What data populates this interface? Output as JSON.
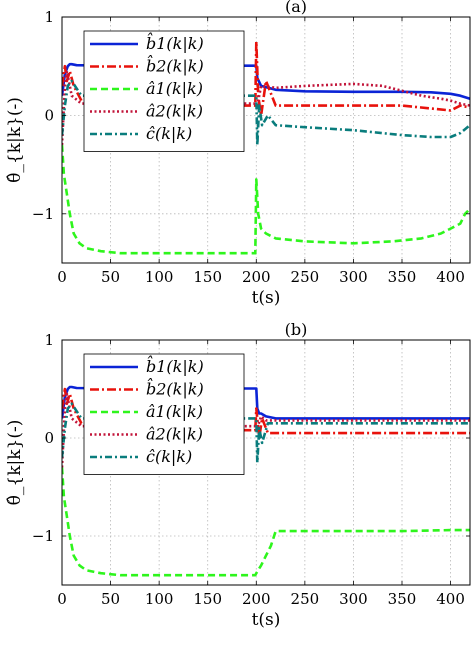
{
  "chart_data": [
    {
      "type": "line",
      "title": "(a)",
      "xlabel": "t(s)",
      "ylabel": "θ̂_{k|k}(-)",
      "xlim": [
        0,
        420
      ],
      "ylim": [
        -1.5,
        1
      ],
      "xticks": [
        "0",
        "50",
        "100",
        "150",
        "200",
        "250",
        "300",
        "350",
        "400"
      ],
      "yticks": [
        "−1",
        "0",
        "1"
      ],
      "grid": true,
      "legend_position": "top-left",
      "series": [
        {
          "name": "b̂1(k|k)",
          "color": "#0b24d6",
          "dash": "solid",
          "x": [
            0,
            3,
            6,
            8,
            10,
            15,
            50,
            100,
            150,
            200,
            201,
            205,
            220,
            250,
            300,
            350,
            380,
            400,
            410,
            420
          ],
          "y": [
            0.2,
            0.42,
            0.5,
            0.52,
            0.52,
            0.51,
            0.505,
            0.505,
            0.505,
            0.505,
            0.38,
            0.3,
            0.26,
            0.245,
            0.24,
            0.24,
            0.235,
            0.22,
            0.2,
            0.17
          ]
        },
        {
          "name": "b̂2(k|k)",
          "color": "#e8120c",
          "dash": "dashdot",
          "x": [
            0,
            3,
            5,
            8,
            12,
            20,
            50,
            100,
            150,
            199,
            200,
            202,
            205,
            210,
            220,
            300,
            350,
            380,
            400,
            410,
            420
          ],
          "y": [
            0.3,
            0.5,
            0.35,
            0.45,
            0.3,
            0.15,
            0.1,
            0.1,
            0.1,
            0.1,
            0.75,
            0.2,
            0.0,
            0.35,
            0.1,
            0.1,
            0.1,
            0.07,
            0.05,
            0.1,
            0.08
          ]
        },
        {
          "name": "â1(k|k)",
          "color": "#2ef51c",
          "dash": "dash",
          "x": [
            0,
            2,
            5,
            8,
            12,
            18,
            25,
            40,
            60,
            100,
            150,
            199,
            200,
            202,
            205,
            210,
            220,
            250,
            300,
            340,
            370,
            390,
            400,
            410,
            415,
            420
          ],
          "y": [
            -0.3,
            -0.6,
            -0.8,
            -1.0,
            -1.2,
            -1.3,
            -1.35,
            -1.38,
            -1.4,
            -1.4,
            -1.4,
            -1.4,
            -0.65,
            -1.0,
            -1.15,
            -1.2,
            -1.25,
            -1.28,
            -1.3,
            -1.28,
            -1.25,
            -1.2,
            -1.15,
            -1.1,
            -1.0,
            -0.95
          ]
        },
        {
          "name": "â2(k|k)",
          "color": "#c2153a",
          "dash": "dot",
          "x": [
            0,
            3,
            5,
            10,
            20,
            50,
            100,
            150,
            199,
            201,
            205,
            220,
            250,
            300,
            330,
            350,
            370,
            390,
            400,
            410,
            420
          ],
          "y": [
            -0.3,
            0.3,
            0.45,
            0.2,
            0.12,
            0.12,
            0.12,
            0.12,
            0.12,
            0.1,
            0.3,
            0.28,
            0.3,
            0.32,
            0.3,
            0.25,
            0.2,
            0.17,
            0.15,
            0.12,
            0.1
          ]
        },
        {
          "name": "ĉ(k|k)",
          "color": "#0a7d7d",
          "dash": "dashdot2",
          "x": [
            0,
            3,
            6,
            10,
            20,
            50,
            100,
            150,
            200,
            201,
            203,
            206,
            212,
            220,
            250,
            300,
            350,
            380,
            400,
            410,
            420
          ],
          "y": [
            -0.2,
            0.1,
            0.3,
            0.35,
            0.2,
            0.2,
            0.2,
            0.2,
            0.2,
            -0.3,
            0.1,
            -0.1,
            0.0,
            -0.1,
            -0.12,
            -0.15,
            -0.2,
            -0.22,
            -0.22,
            -0.18,
            -0.1
          ]
        }
      ]
    },
    {
      "type": "line",
      "title": "(b)",
      "xlabel": "t(s)",
      "ylabel": "θ̂_{k|k}(-)",
      "xlim": [
        0,
        420
      ],
      "ylim": [
        -1.5,
        1
      ],
      "xticks": [
        "0",
        "50",
        "100",
        "150",
        "200",
        "250",
        "300",
        "350",
        "400"
      ],
      "yticks": [
        "−1",
        "0",
        "1"
      ],
      "grid": true,
      "legend_position": "top-left",
      "series": [
        {
          "name": "b̂1(k|k)",
          "color": "#0b24d6",
          "dash": "solid",
          "x": [
            0,
            3,
            6,
            8,
            10,
            15,
            50,
            100,
            150,
            200,
            201,
            203,
            205,
            210,
            220,
            250,
            300,
            350,
            400,
            420
          ],
          "y": [
            0.2,
            0.42,
            0.5,
            0.52,
            0.52,
            0.51,
            0.505,
            0.505,
            0.505,
            0.505,
            0.3,
            0.25,
            0.25,
            0.22,
            0.2,
            0.2,
            0.2,
            0.2,
            0.2,
            0.2
          ]
        },
        {
          "name": "b̂2(k|k)",
          "color": "#e8120c",
          "dash": "dashdot",
          "x": [
            0,
            3,
            5,
            8,
            12,
            20,
            50,
            100,
            150,
            199,
            200,
            203,
            206,
            212,
            220,
            300,
            400,
            420
          ],
          "y": [
            0.3,
            0.5,
            0.35,
            0.45,
            0.3,
            0.15,
            0.1,
            0.08,
            0.08,
            0.08,
            0.3,
            0.0,
            0.2,
            0.05,
            0.05,
            0.05,
            0.05,
            0.05
          ]
        },
        {
          "name": "â1(k|k)",
          "color": "#2ef51c",
          "dash": "dash",
          "x": [
            0,
            2,
            5,
            8,
            12,
            18,
            25,
            40,
            60,
            100,
            150,
            199,
            200,
            205,
            210,
            215,
            220,
            250,
            300,
            350,
            400,
            420
          ],
          "y": [
            -0.3,
            -0.6,
            -0.8,
            -1.0,
            -1.2,
            -1.3,
            -1.35,
            -1.38,
            -1.4,
            -1.4,
            -1.4,
            -1.4,
            -1.38,
            -1.3,
            -1.2,
            -1.1,
            -0.95,
            -0.95,
            -0.95,
            -0.95,
            -0.94,
            -0.94
          ]
        },
        {
          "name": "â2(k|k)",
          "color": "#c2153a",
          "dash": "dot",
          "x": [
            0,
            3,
            5,
            10,
            20,
            50,
            100,
            150,
            199,
            201,
            205,
            210,
            220,
            300,
            400,
            420
          ],
          "y": [
            -0.3,
            0.3,
            0.45,
            0.2,
            0.12,
            0.12,
            0.12,
            0.12,
            0.12,
            0.1,
            0.22,
            0.18,
            0.18,
            0.18,
            0.18,
            0.18
          ]
        },
        {
          "name": "ĉ(k|k)",
          "color": "#0a7d7d",
          "dash": "dashdot2",
          "x": [
            0,
            3,
            6,
            10,
            20,
            50,
            100,
            150,
            200,
            201,
            203,
            206,
            212,
            220,
            300,
            400,
            420
          ],
          "y": [
            -0.2,
            0.1,
            0.3,
            0.35,
            0.2,
            0.2,
            0.2,
            0.2,
            0.2,
            -0.25,
            0.1,
            -0.05,
            0.15,
            0.15,
            0.15,
            0.15,
            0.15
          ]
        }
      ]
    }
  ]
}
